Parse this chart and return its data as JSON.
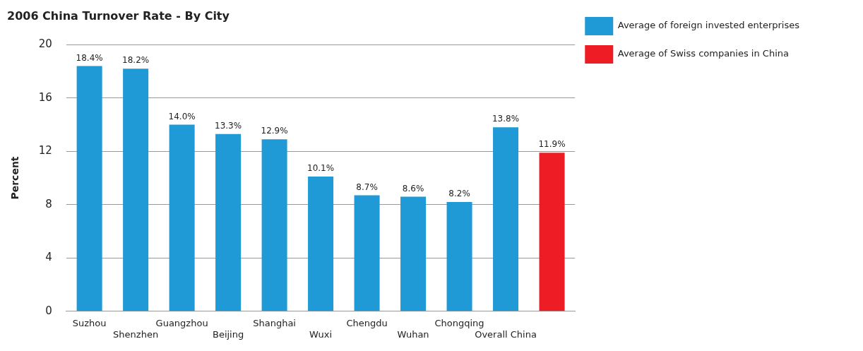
{
  "chart_data": {
    "type": "bar",
    "title": "2006 China Turnover Rate - By City",
    "ylabel": "Percent",
    "categories": [
      "Suzhou",
      "Shenzhen",
      "Guangzhou",
      "Beijing",
      "Shanghai",
      "Wuxi",
      "Chengdu",
      "Wuhan",
      "Chongqing",
      "Overall China",
      null
    ],
    "series": [
      {
        "name": "Average of foreign invested enterprises",
        "color": "#1f9ad6",
        "values": [
          18.4,
          18.2,
          14.0,
          13.3,
          12.9,
          10.1,
          8.7,
          8.6,
          8.2,
          13.8,
          null
        ],
        "value_labels": [
          "18.4%",
          "18.2%",
          "14.0%",
          "13.3%",
          "12.9%",
          "10.1%",
          "8.7%",
          "8.6%",
          "8.2%",
          "13.8%",
          null
        ]
      },
      {
        "name": "Average of Swiss companies in China",
        "color": "#ee1c25",
        "values": [
          null,
          null,
          null,
          null,
          null,
          null,
          null,
          null,
          null,
          null,
          11.9
        ],
        "value_labels": [
          null,
          null,
          null,
          null,
          null,
          null,
          null,
          null,
          null,
          null,
          "11.9%"
        ]
      }
    ],
    "ylim": [
      0,
      20
    ],
    "yticks": [
      0,
      4,
      8,
      12,
      16,
      20
    ],
    "grid": "y",
    "legend": "top right"
  }
}
